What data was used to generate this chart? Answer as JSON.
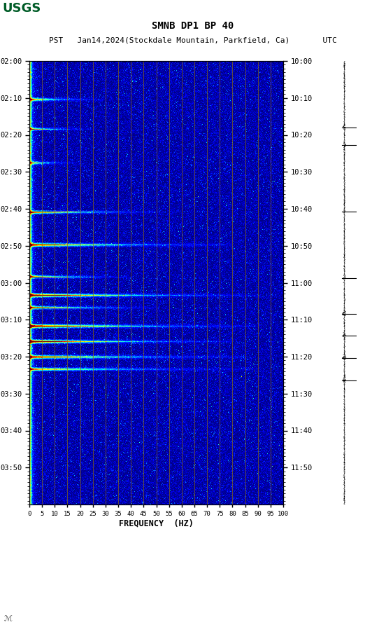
{
  "title_line1": "SMNB DP1 BP 40",
  "title_line2": "PST   Jan14,2024(Stockdale Mountain, Parkfield, Ca)       UTC",
  "xlabel": "FREQUENCY  (HZ)",
  "left_times": [
    "02:00",
    "02:10",
    "02:20",
    "02:30",
    "02:40",
    "02:50",
    "03:00",
    "03:10",
    "03:20",
    "03:30",
    "03:40",
    "03:50"
  ],
  "right_times": [
    "10:00",
    "10:10",
    "10:20",
    "10:30",
    "10:40",
    "10:50",
    "11:00",
    "11:10",
    "11:20",
    "11:30",
    "11:40",
    "11:50"
  ],
  "freq_ticks": [
    0,
    5,
    10,
    15,
    20,
    25,
    30,
    35,
    40,
    45,
    50,
    55,
    60,
    65,
    70,
    75,
    80,
    85,
    90,
    95,
    100
  ],
  "freq_min": 0,
  "freq_max": 100,
  "n_time": 720,
  "n_freq": 500,
  "background_color": "#ffffff",
  "usgs_green": "#005c27",
  "spectrogram_colormap": "jet",
  "vertical_lines_freq": [
    5,
    10,
    15,
    20,
    25,
    30,
    35,
    40,
    45,
    50,
    55,
    60,
    65,
    70,
    75,
    80,
    85,
    90,
    95,
    100
  ],
  "vertical_line_color": "#8B6914",
  "event_rows": [
    62,
    110,
    165,
    245,
    298,
    350,
    380,
    400,
    430,
    455,
    480,
    500
  ],
  "event_intensities": [
    0.9,
    0.6,
    0.5,
    0.95,
    0.85,
    0.8,
    0.9,
    0.85,
    0.95,
    0.9,
    0.85,
    0.9
  ],
  "event_freq_extent": [
    0.3,
    0.25,
    0.2,
    0.5,
    0.8,
    0.4,
    0.9,
    0.5,
    0.9,
    0.8,
    0.85,
    0.9
  ],
  "seismo_event_rows": [
    0.15,
    0.19,
    0.34,
    0.49,
    0.57,
    0.62,
    0.67,
    0.72
  ],
  "seismo_event_amp": [
    0.3,
    0.2,
    0.15,
    0.25,
    0.35,
    0.3,
    0.4,
    0.35
  ]
}
